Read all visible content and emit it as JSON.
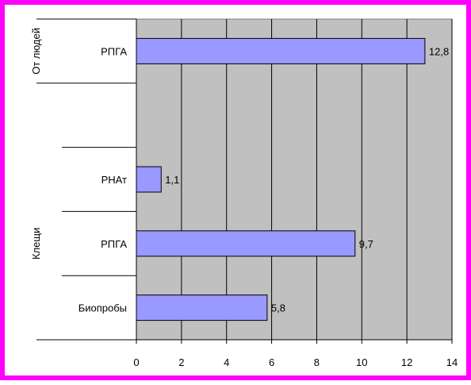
{
  "chart_data": {
    "type": "bar",
    "orientation": "horizontal",
    "groups": [
      {
        "label": "От людей",
        "categories": [
          "РПГА"
        ]
      },
      {
        "label": "Клещи",
        "categories": [
          "РНАт",
          "РПГА",
          "Биопробы"
        ]
      }
    ],
    "categories": [
      "РПГА",
      "",
      "РНАт",
      "РПГА",
      "Биопробы"
    ],
    "values": [
      12.8,
      null,
      1.1,
      9.7,
      5.8
    ],
    "data_labels": [
      "12,8",
      "",
      "1,1",
      "9,7",
      "5,8"
    ],
    "xlim": [
      0,
      14
    ],
    "xticks": [
      0,
      2,
      4,
      6,
      8,
      10,
      12,
      14
    ],
    "xtick_labels": [
      "0",
      "2",
      "4",
      "6",
      "8",
      "10",
      "12",
      "14"
    ],
    "grid": "vertical",
    "colors": {
      "border": "#ff00ff",
      "plot_bg": "#c0c0c0",
      "bar_fill": "#9999ff",
      "bar_stroke": "#000000",
      "grid": "#000000"
    }
  }
}
